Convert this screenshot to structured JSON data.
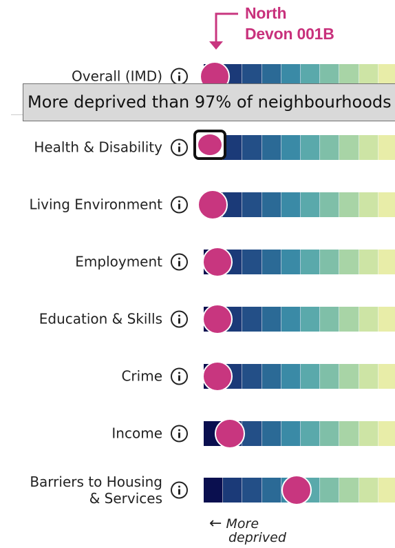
{
  "callout": {
    "line1": "North",
    "line2": "Devon 001B"
  },
  "tooltip": {
    "text": "More deprived than 97% of neighbourhoods"
  },
  "colors": {
    "accent": "#c8367f",
    "scale": [
      "#0a0f4f",
      "#1b3a78",
      "#234f87",
      "#2b6a96",
      "#3a8aa6",
      "#5aa9ab",
      "#7fbfa8",
      "#a8d4a6",
      "#cde4a5",
      "#e8eda8"
    ]
  },
  "rows": [
    {
      "label": "Overall (IMD)",
      "decile": 1
    },
    {
      "label": "Health & Disability",
      "decile": 1
    },
    {
      "label": "Living Environment",
      "decile": 1
    },
    {
      "label": "Employment",
      "decile": 1
    },
    {
      "label": "Education & Skills",
      "decile": 1
    },
    {
      "label": "Crime",
      "decile": 1
    },
    {
      "label": "Income",
      "decile": 2
    },
    {
      "label_line1": "Barriers to Housing",
      "label_line2": "& Services",
      "decile": 5
    }
  ],
  "footer": {
    "arrow": "←",
    "line1": "More",
    "line2": "deprived"
  }
}
